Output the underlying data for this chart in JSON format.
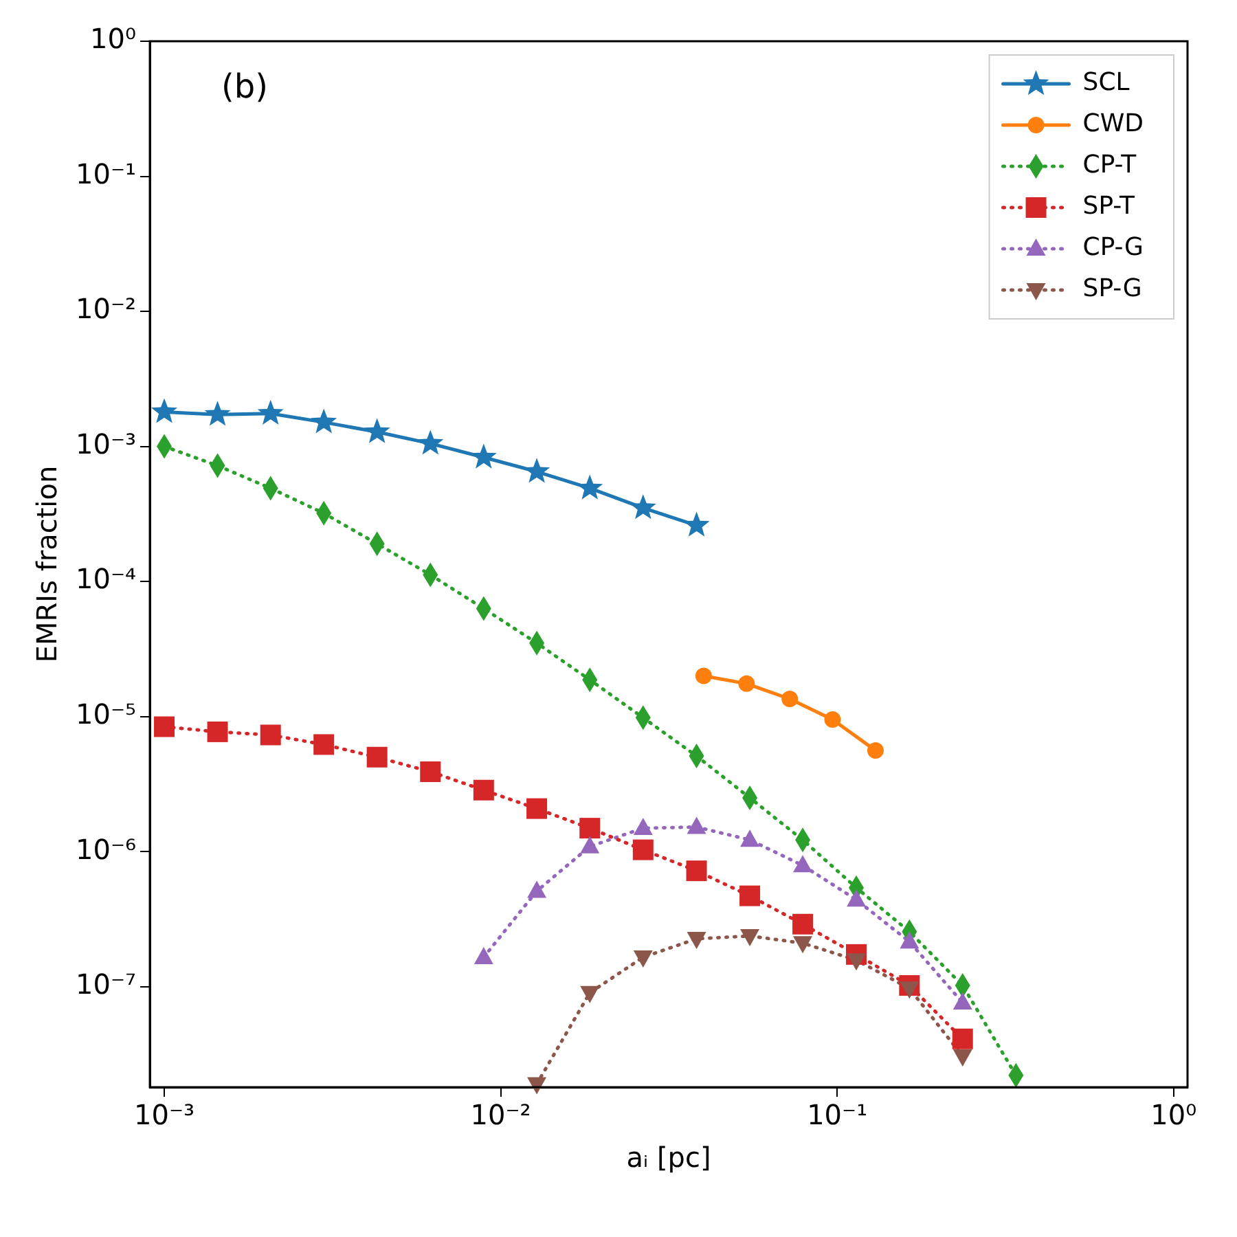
{
  "chart_data": {
    "type": "line",
    "xlabel": "aᵢ [pc]",
    "ylabel": "EMRIs fraction",
    "log": "xy",
    "grid": false,
    "legend": "top right",
    "annotations": [
      "(b)"
    ],
    "xlim": [
      0.000906,
      1.1
    ],
    "ylim": [
      1.8e-08,
      1
    ],
    "xticks": [
      {
        "value": 0.001,
        "label": "10⁻³"
      },
      {
        "value": 0.01,
        "label": "10⁻²"
      },
      {
        "value": 0.1,
        "label": "10⁻¹"
      },
      {
        "value": 1,
        "label": "10⁰"
      }
    ],
    "yticks": [
      {
        "value": 1e-07,
        "label": "10⁻⁷"
      },
      {
        "value": 1e-06,
        "label": "10⁻⁶"
      },
      {
        "value": 1e-05,
        "label": "10⁻⁵"
      },
      {
        "value": 0.0001,
        "label": "10⁻⁴"
      },
      {
        "value": 0.001,
        "label": "10⁻³"
      },
      {
        "value": 0.01,
        "label": "10⁻²"
      },
      {
        "value": 0.1,
        "label": "10⁻¹"
      },
      {
        "value": 1,
        "label": "10⁰"
      }
    ],
    "series": [
      {
        "name": "SCL",
        "color": "#1f77b4",
        "marker": "star",
        "line_style": "solid",
        "x": [
          0.001,
          0.00144,
          0.00207,
          0.00298,
          0.00429,
          0.00618,
          0.0089,
          0.0128,
          0.0184,
          0.0265,
          0.0382
        ],
        "values": [
          0.0018,
          0.00172,
          0.00175,
          0.00151,
          0.00128,
          0.00105,
          0.00083,
          0.00065,
          0.00049,
          0.00035,
          0.00026
        ]
      },
      {
        "name": "CWD",
        "color": "#ff7f0e",
        "marker": "circle",
        "line_style": "solid",
        "x": [
          0.0401,
          0.0538,
          0.0723,
          0.0969,
          0.13
        ],
        "values": [
          2e-05,
          1.75e-05,
          1.35e-05,
          9.5e-06,
          5.6e-06
        ]
      },
      {
        "name": "CP-T",
        "color": "#2ca02c",
        "marker": "diamond",
        "line_style": "dotted",
        "x": [
          0.001,
          0.00144,
          0.00207,
          0.00298,
          0.00429,
          0.00618,
          0.0089,
          0.0128,
          0.0184,
          0.0265,
          0.0382,
          0.055,
          0.079,
          0.114,
          0.164,
          0.236,
          0.34
        ],
        "values": [
          0.001,
          0.00072,
          0.00049,
          0.00032,
          0.00019,
          0.000112,
          6.3e-05,
          3.5e-05,
          1.87e-05,
          9.8e-06,
          5.1e-06,
          2.5e-06,
          1.22e-06,
          5.4e-07,
          2.55e-07,
          1.02e-07,
          2.2e-08
        ]
      },
      {
        "name": "SP-T",
        "color": "#d62728",
        "marker": "square",
        "line_style": "dotted",
        "x": [
          0.001,
          0.00144,
          0.00207,
          0.00298,
          0.00429,
          0.00618,
          0.0089,
          0.0128,
          0.0184,
          0.0265,
          0.0382,
          0.055,
          0.079,
          0.114,
          0.164,
          0.236
        ],
        "values": [
          8.4e-06,
          7.7e-06,
          7.3e-06,
          6.2e-06,
          5e-06,
          3.9e-06,
          2.85e-06,
          2.08e-06,
          1.49e-06,
          1.03e-06,
          7.2e-07,
          4.7e-07,
          2.9e-07,
          1.73e-07,
          1.02e-07,
          4.1e-08
        ]
      },
      {
        "name": "CP-G",
        "color": "#9467bd",
        "marker": "triangle",
        "line_style": "dotted",
        "x": [
          0.0089,
          0.0128,
          0.0184,
          0.0265,
          0.0382,
          0.055,
          0.079,
          0.114,
          0.164,
          0.236
        ],
        "values": [
          1.65e-07,
          5.1e-07,
          1.09e-06,
          1.49e-06,
          1.52e-06,
          1.22e-06,
          7.9e-07,
          4.4e-07,
          2.15e-07,
          7.6e-08
        ]
      },
      {
        "name": "SP-G",
        "color": "#8c564b",
        "marker": "triangle_down",
        "line_style": "dotted",
        "x": [
          0.0128,
          0.0184,
          0.0265,
          0.0382,
          0.055,
          0.079,
          0.114,
          0.164,
          0.236
        ],
        "values": [
          1.9e-08,
          9e-08,
          1.65e-07,
          2.26e-07,
          2.37e-07,
          2.1e-07,
          1.57e-07,
          9.7e-08,
          3.05e-08
        ]
      }
    ]
  }
}
